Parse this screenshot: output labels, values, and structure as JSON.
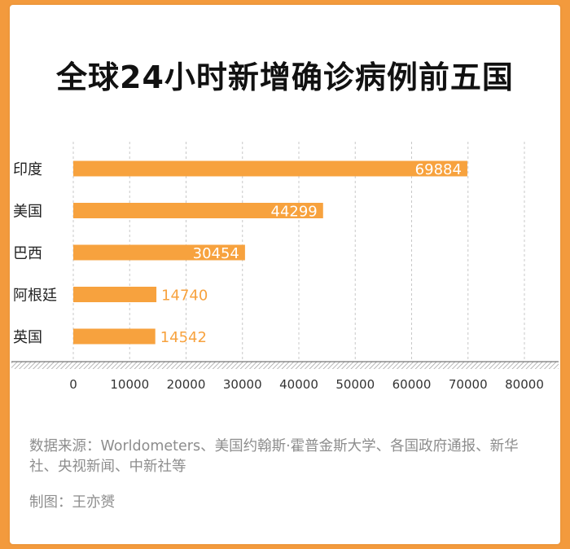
{
  "title": "全球24小时新增确诊病例前五国",
  "footer": {
    "source": "数据来源：Worldometers、美国约翰斯·霍普金斯大学、各国政府通报、新华社、央视新闻、中新社等",
    "credit": "制图：王亦赟"
  },
  "colors": {
    "bar": "#f7a23e",
    "label_on_bar": "#ffffff",
    "label_outside": "#f7a23e",
    "grid": "#c8c8c8",
    "background": "#f39a3d"
  },
  "chart_data": {
    "type": "bar",
    "orientation": "horizontal",
    "categories": [
      "印度",
      "美国",
      "巴西",
      "阿根廷",
      "英国"
    ],
    "values": [
      69884,
      44299,
      30454,
      14740,
      14542
    ],
    "xlim": [
      0,
      80000
    ],
    "xticks": [
      "0",
      "10000",
      "20000",
      "30000",
      "40000",
      "50000",
      "60000",
      "70000",
      "80000"
    ],
    "grid": "vertical-dashed"
  }
}
